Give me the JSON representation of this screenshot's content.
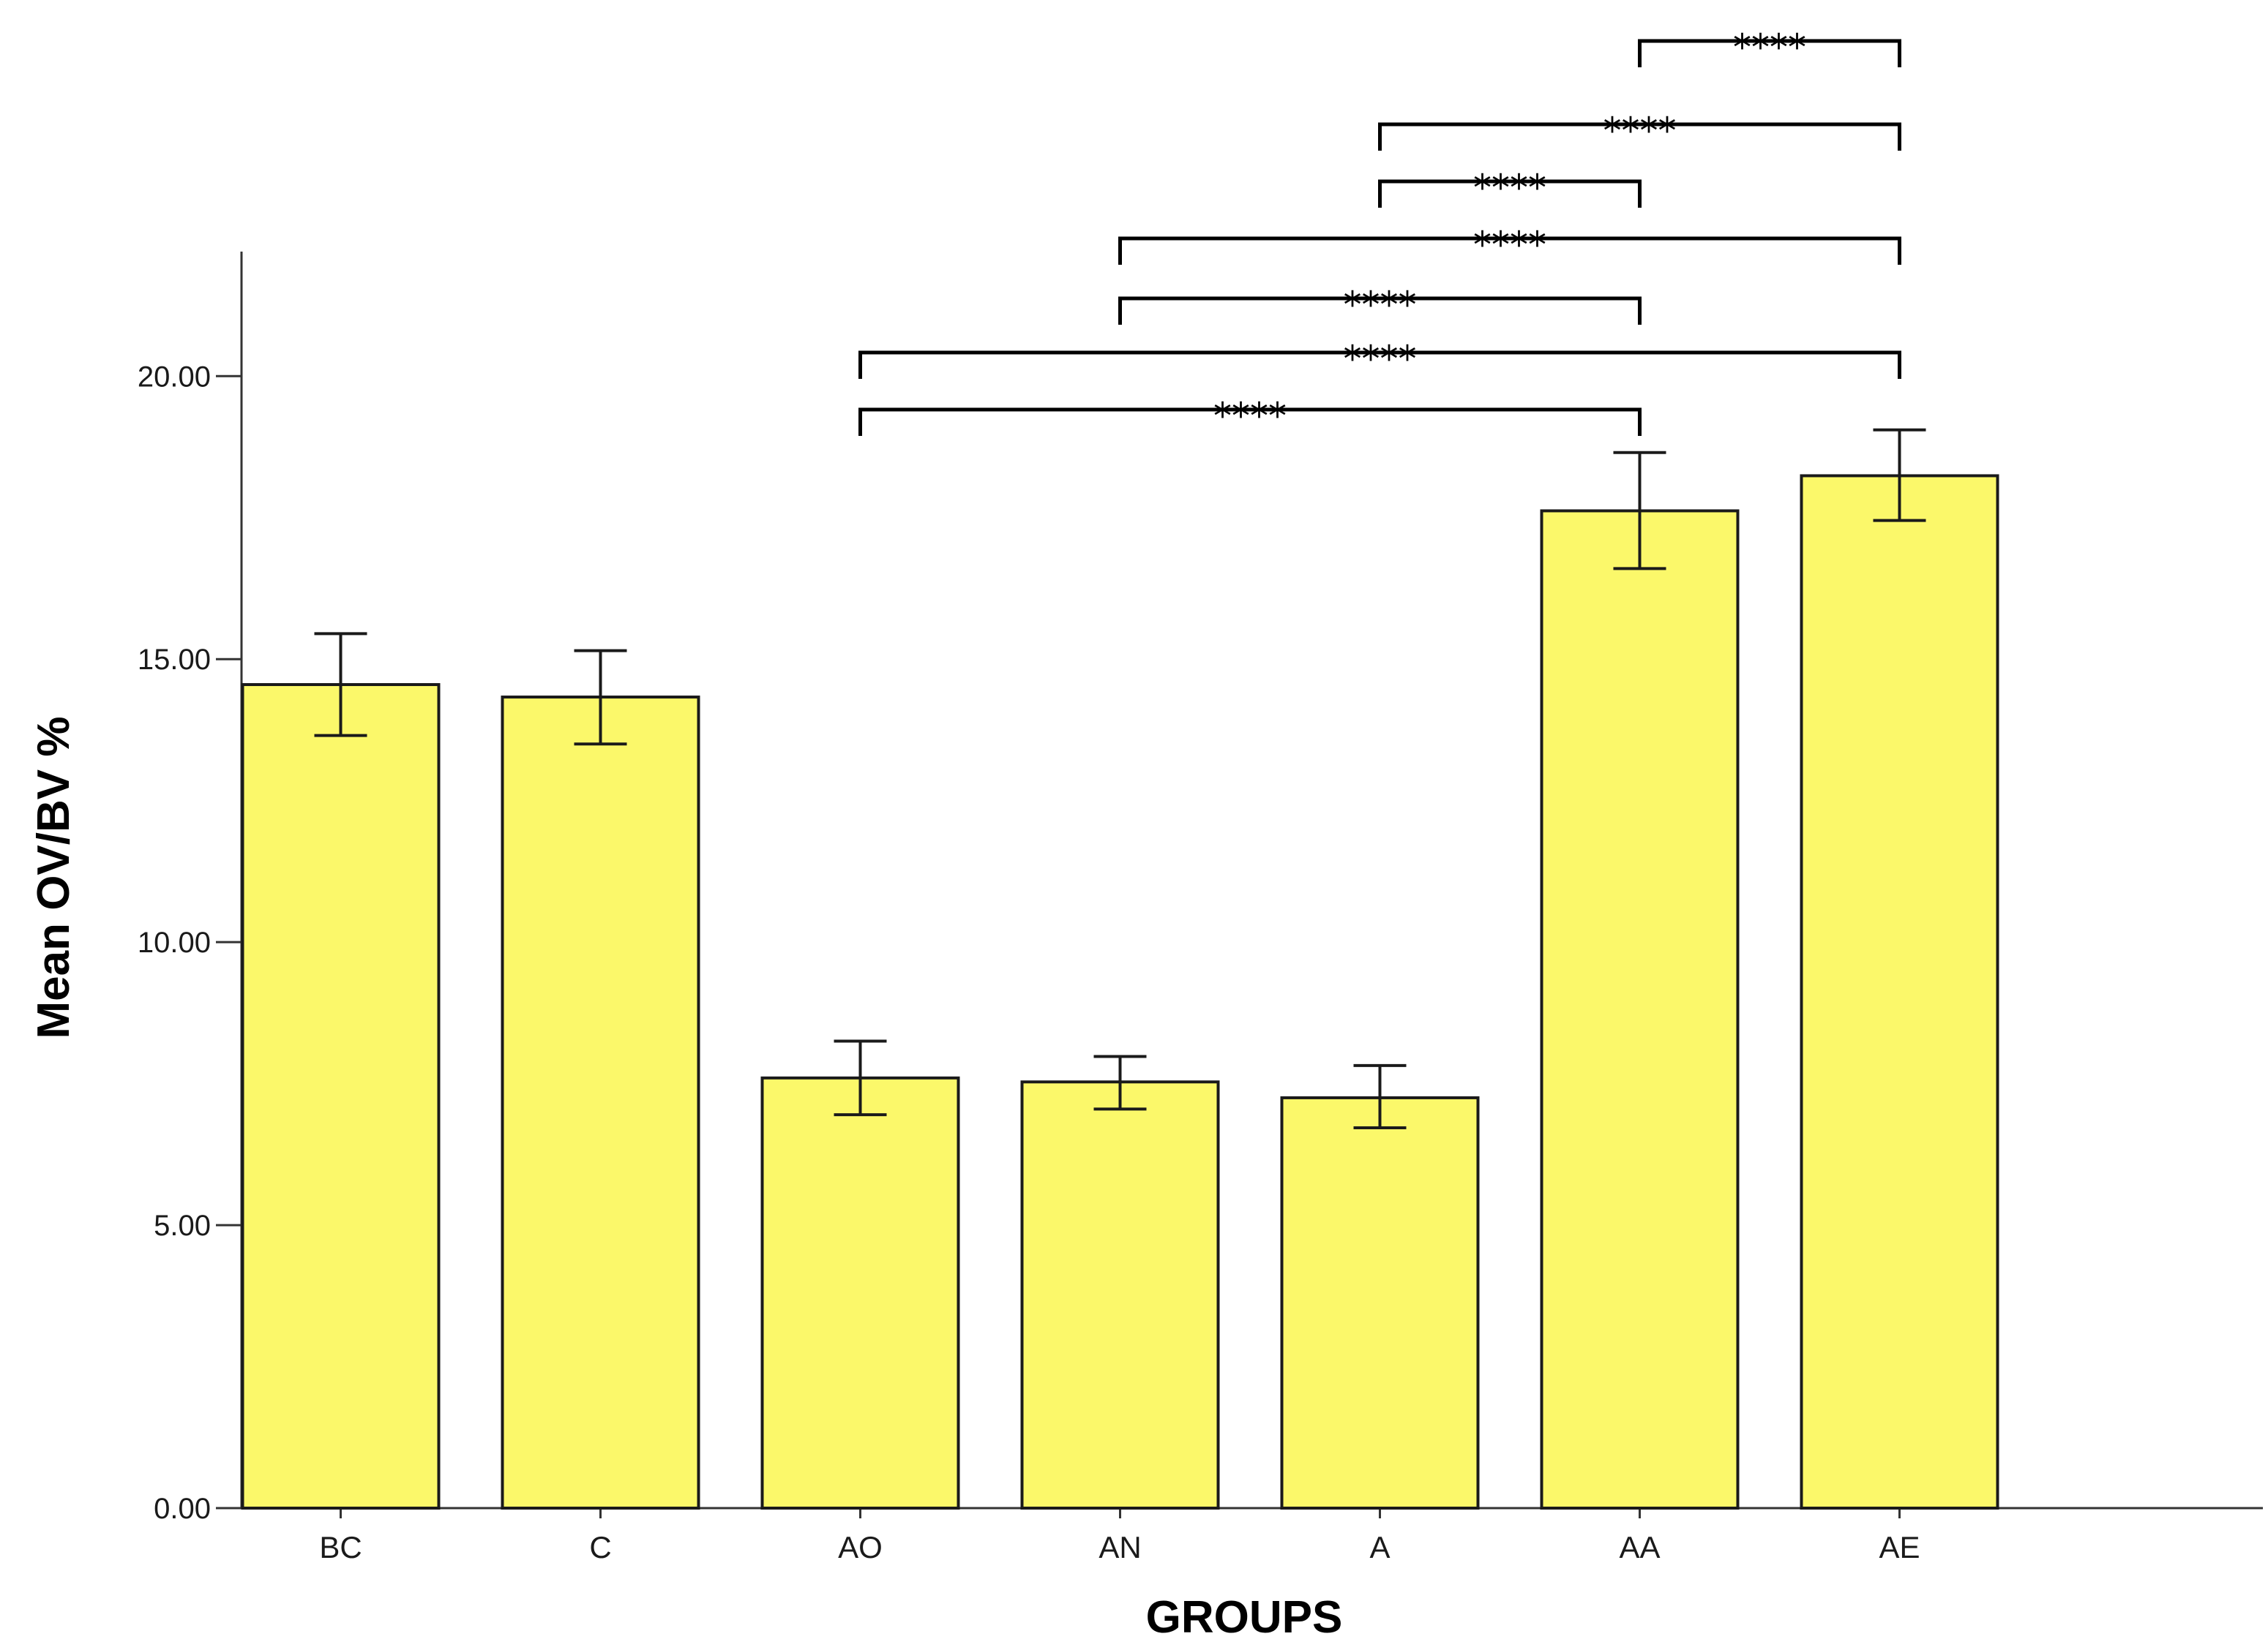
{
  "chart_data": {
    "type": "bar",
    "xlabel": "GROUPS",
    "ylabel": "Mean OV/BV %",
    "ylim": [
      0,
      22.2
    ],
    "yticks": [
      0,
      5,
      10,
      15,
      20
    ],
    "ytick_labels": [
      "0.00",
      "5.00",
      "10.00",
      "15.00",
      "20.00"
    ],
    "categories": [
      "BC",
      "C",
      "AO",
      "AN",
      "A",
      "AA",
      "AE"
    ],
    "values": [
      14.55,
      14.33,
      7.6,
      7.53,
      7.25,
      17.62,
      18.24
    ],
    "error_low": [
      13.65,
      13.5,
      6.95,
      7.05,
      6.72,
      16.6,
      17.45
    ],
    "error_high": [
      15.45,
      15.15,
      8.25,
      7.98,
      7.82,
      18.65,
      19.05
    ],
    "bar_color": "#fbf86a",
    "grid": false,
    "significance": [
      {
        "from": "AA",
        "to": "AE",
        "label": "****"
      },
      {
        "from": "A",
        "to": "AE",
        "label": "****"
      },
      {
        "from": "A",
        "to": "AA",
        "label": "****"
      },
      {
        "from": "AN",
        "to": "AE",
        "label": "****"
      },
      {
        "from": "AN",
        "to": "AA",
        "label": "****"
      },
      {
        "from": "AO",
        "to": "AE",
        "label": "****"
      },
      {
        "from": "AO",
        "to": "AA",
        "label": "****"
      }
    ]
  }
}
